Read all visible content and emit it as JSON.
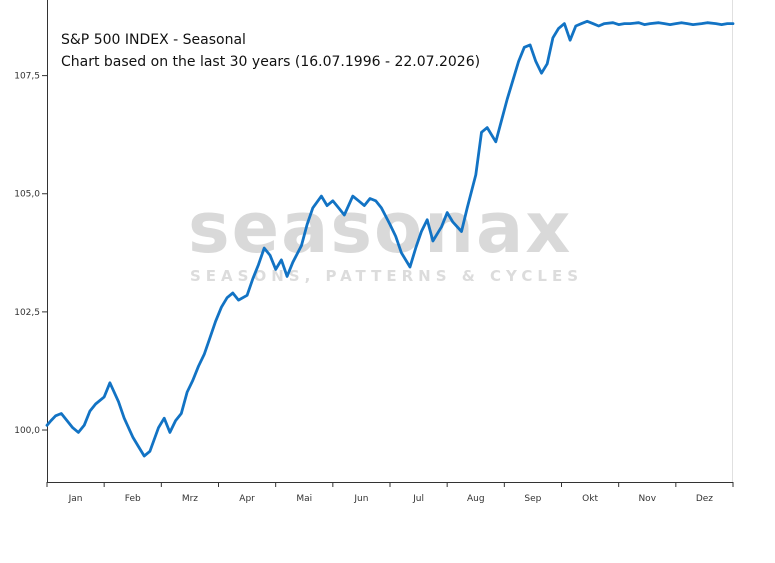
{
  "chart_data": {
    "type": "line",
    "title": "S&P 500 INDEX - Seasonal",
    "subtitle": "Chart based on the last 30 years (16.07.1996 - 22.07.2026)",
    "xlabel": "",
    "ylabel": "",
    "x_tick_labels": [
      "Jan",
      "Feb",
      "Mrz",
      "Apr",
      "Mai",
      "Jun",
      "Jul",
      "Aug",
      "Sep",
      "Okt",
      "Nov",
      "Dez"
    ],
    "y_ticks": [
      100.0,
      102.5,
      105.0,
      107.5
    ],
    "y_tick_labels": [
      "100,0",
      "102,5",
      "105,0",
      "107,5"
    ],
    "xlim": [
      0,
      12
    ],
    "ylim": [
      98.9,
      109.1
    ],
    "grid": false,
    "line_color": "#1273c4",
    "series": [
      {
        "name": "",
        "x": [
          0.0,
          0.07,
          0.15,
          0.25,
          0.35,
          0.45,
          0.55,
          0.65,
          0.75,
          0.85,
          1.0,
          1.1,
          1.25,
          1.35,
          1.5,
          1.6,
          1.7,
          1.8,
          1.95,
          2.05,
          2.15,
          2.25,
          2.35,
          2.45,
          2.55,
          2.65,
          2.75,
          2.85,
          2.95,
          3.05,
          3.15,
          3.25,
          3.35,
          3.5,
          3.6,
          3.7,
          3.8,
          3.9,
          4.0,
          4.1,
          4.2,
          4.3,
          4.45,
          4.55,
          4.65,
          4.8,
          4.9,
          5.0,
          5.1,
          5.2,
          5.35,
          5.45,
          5.55,
          5.65,
          5.75,
          5.85,
          6.0,
          6.1,
          6.2,
          6.35,
          6.45,
          6.55,
          6.65,
          6.75,
          6.9,
          7.0,
          7.1,
          7.25,
          7.35,
          7.5,
          7.6,
          7.7,
          7.85,
          7.95,
          8.05,
          8.15,
          8.25,
          8.35,
          8.45,
          8.55,
          8.65,
          8.75,
          8.85,
          8.95,
          9.05,
          9.15,
          9.25,
          9.35,
          9.45,
          9.55,
          9.65,
          9.75,
          9.9,
          10.0,
          10.1,
          10.2,
          10.35,
          10.45,
          10.55,
          10.7,
          10.8,
          10.9,
          11.0,
          11.1,
          11.2,
          11.3,
          11.45,
          11.55,
          11.7,
          11.8,
          11.9,
          12.0
        ],
        "values": [
          100.1,
          100.2,
          100.3,
          100.35,
          100.2,
          100.05,
          99.95,
          100.1,
          100.4,
          100.55,
          100.7,
          101.0,
          100.6,
          100.25,
          99.85,
          99.65,
          99.45,
          99.55,
          100.05,
          100.25,
          99.95,
          100.2,
          100.35,
          100.8,
          101.05,
          101.35,
          101.6,
          101.95,
          102.3,
          102.6,
          102.8,
          102.9,
          102.75,
          102.85,
          103.2,
          103.5,
          103.85,
          103.7,
          103.4,
          103.6,
          103.25,
          103.55,
          103.9,
          104.35,
          104.7,
          104.95,
          104.75,
          104.85,
          104.7,
          104.55,
          104.95,
          104.85,
          104.75,
          104.9,
          104.85,
          104.7,
          104.35,
          104.1,
          103.75,
          103.45,
          103.85,
          104.2,
          104.45,
          104.0,
          104.3,
          104.6,
          104.4,
          104.2,
          104.7,
          105.4,
          106.3,
          106.4,
          106.1,
          106.55,
          107.0,
          107.4,
          107.8,
          108.1,
          108.15,
          107.8,
          107.55,
          107.75,
          108.3,
          108.5,
          108.6,
          108.25,
          108.55,
          108.6,
          108.65,
          108.6,
          108.55,
          108.6,
          108.62,
          108.58,
          108.6,
          108.6,
          108.62,
          108.58,
          108.6,
          108.62,
          108.6,
          108.58,
          108.6,
          108.62,
          108.6,
          108.58,
          108.6,
          108.62,
          108.6,
          108.58,
          108.6,
          108.6
        ]
      }
    ]
  }
}
